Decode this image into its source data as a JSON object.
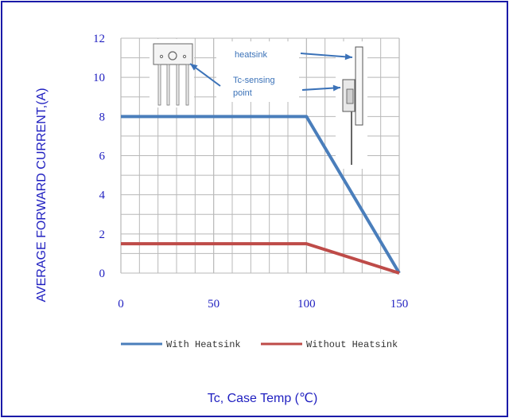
{
  "chart_data": {
    "type": "line",
    "title": "",
    "xlabel": "Tc, Case Temp (℃)",
    "ylabel": "AVERAGE FORWARD CURRENT,(A)",
    "xlim": [
      0,
      150
    ],
    "ylim": [
      0,
      12
    ],
    "x_ticks": [
      "0",
      "50",
      "100",
      "150"
    ],
    "y_ticks": [
      "0",
      "2",
      "4",
      "6",
      "8",
      "10",
      "12"
    ],
    "grid": true,
    "legend_position": "bottom",
    "series": [
      {
        "name": "With Heatsink",
        "color": "#4a7ebb",
        "x": [
          0,
          100,
          150
        ],
        "y": [
          8,
          8,
          0
        ]
      },
      {
        "name": "Without Heatsink",
        "color": "#be4b48",
        "x": [
          0,
          100,
          150
        ],
        "y": [
          1.5,
          1.5,
          0
        ]
      }
    ],
    "annotations": {
      "heatsink_label": "heatsink",
      "tc_point_label_line1": "Tc-sensing",
      "tc_point_label_line2": "point"
    }
  },
  "colors": {
    "frame": "#1a1aa8",
    "text": "#1f1fc0",
    "grid": "#b8b8b8",
    "annotation": "#3b72b8"
  }
}
